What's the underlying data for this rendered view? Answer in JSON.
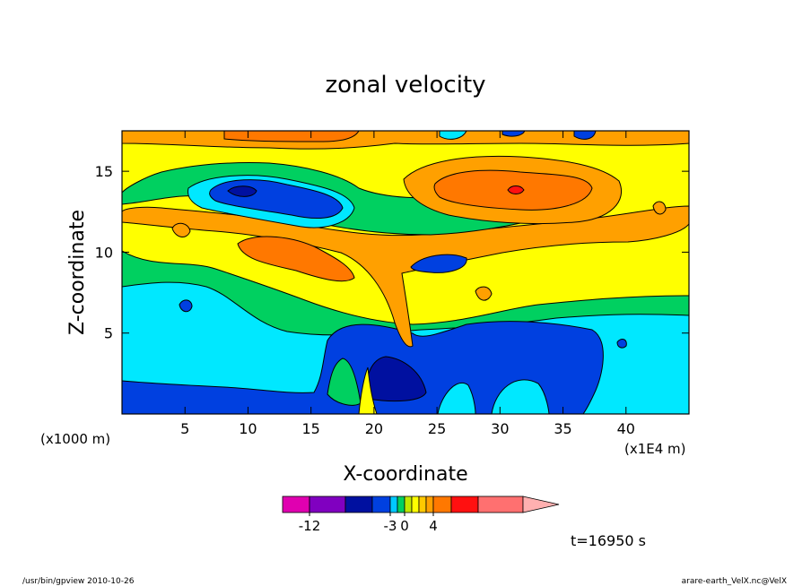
{
  "chart_data": {
    "type": "heatmap",
    "title": "zonal velocity",
    "xlabel": "X-coordinate",
    "ylabel": "Z-coordinate",
    "x_unit_left": "(x1000 m)",
    "x_unit_right": "(x1E4 m)",
    "xlim": [
      0,
      45
    ],
    "ylim": [
      0,
      17.5
    ],
    "x_ticks": [
      5,
      10,
      15,
      20,
      25,
      30,
      35,
      40
    ],
    "y_ticks": [
      5,
      10,
      15
    ],
    "time_label": "t=16950 s",
    "colorbar": {
      "bins": [
        {
          "color": "#e000b0"
        },
        {
          "color": "#8000c0"
        },
        {
          "color": "#0010a0"
        },
        {
          "color": "#0040e0"
        },
        {
          "color": "#00c8ff"
        },
        {
          "color": "#00d060"
        },
        {
          "color": "#c0e800"
        },
        {
          "color": "#ffff00"
        },
        {
          "color": "#ffc800"
        },
        {
          "color": "#ffa000"
        },
        {
          "color": "#ff7800"
        },
        {
          "color": "#ff1010"
        },
        {
          "color": "#ff7070"
        },
        {
          "color": "#ffb0b0"
        }
      ],
      "tick_labels": [
        "-12",
        "-3",
        "0",
        "4"
      ]
    },
    "footer_left": "/usr/bin/gpview   2010-10-26",
    "footer_right": "arare-earth_VelX.nc@VelX"
  }
}
